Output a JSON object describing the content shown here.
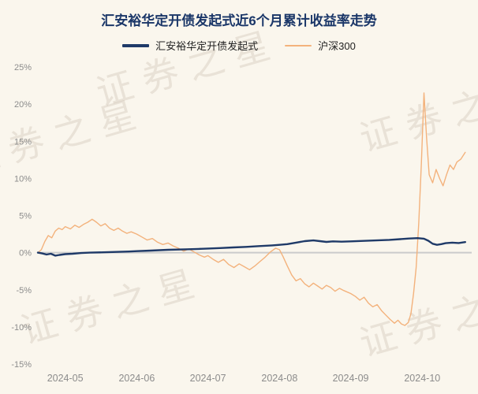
{
  "title": "汇安裕华定开债发起式近6个月累计收益率走势",
  "watermark_text": "证券之星",
  "colors": {
    "background": "#faf6ed",
    "title": "#1a3668",
    "fund_line": "#1f3a68",
    "csi300_line": "#f3b27c",
    "axis_text": "#8c8c8c",
    "zero_line": "#cbcbcb"
  },
  "chart_data": {
    "type": "line",
    "title": "汇安裕华定开债发起式近6个月累计收益率走势",
    "xlabel": "",
    "ylabel": "",
    "ylim": [
      -15,
      25
    ],
    "grid": false,
    "legend_position": "top",
    "yticks": [
      {
        "v": 25,
        "label": "25%"
      },
      {
        "v": 20,
        "label": "20%"
      },
      {
        "v": 15,
        "label": "15%"
      },
      {
        "v": 10,
        "label": "10%"
      },
      {
        "v": 5,
        "label": "5%"
      },
      {
        "v": 0,
        "label": "0%"
      },
      {
        "v": -5,
        "label": "-5%"
      },
      {
        "v": -10,
        "label": "-10%"
      },
      {
        "v": -15,
        "label": "-15%"
      }
    ],
    "xticks": [
      {
        "pos": 0.063,
        "label": "2024-05"
      },
      {
        "pos": 0.228,
        "label": "2024-06"
      },
      {
        "pos": 0.392,
        "label": "2024-07"
      },
      {
        "pos": 0.557,
        "label": "2024-08"
      },
      {
        "pos": 0.721,
        "label": "2024-09"
      },
      {
        "pos": 0.886,
        "label": "2024-10"
      }
    ],
    "series": [
      {
        "name": "汇安裕华定开债发起式",
        "color": "#1f3a68",
        "stroke_width": 2.4,
        "points": [
          [
            0.0,
            0.0
          ],
          [
            0.01,
            -0.1
          ],
          [
            0.02,
            -0.25
          ],
          [
            0.03,
            -0.15
          ],
          [
            0.04,
            -0.4
          ],
          [
            0.05,
            -0.3
          ],
          [
            0.063,
            -0.2
          ],
          [
            0.08,
            -0.15
          ],
          [
            0.1,
            -0.05
          ],
          [
            0.12,
            0.0
          ],
          [
            0.15,
            0.05
          ],
          [
            0.18,
            0.1
          ],
          [
            0.21,
            0.15
          ],
          [
            0.228,
            0.2
          ],
          [
            0.26,
            0.28
          ],
          [
            0.3,
            0.38
          ],
          [
            0.34,
            0.45
          ],
          [
            0.37,
            0.5
          ],
          [
            0.392,
            0.55
          ],
          [
            0.42,
            0.62
          ],
          [
            0.45,
            0.7
          ],
          [
            0.48,
            0.78
          ],
          [
            0.51,
            0.88
          ],
          [
            0.54,
            0.98
          ],
          [
            0.557,
            1.05
          ],
          [
            0.575,
            1.15
          ],
          [
            0.595,
            1.35
          ],
          [
            0.615,
            1.55
          ],
          [
            0.635,
            1.65
          ],
          [
            0.65,
            1.55
          ],
          [
            0.665,
            1.45
          ],
          [
            0.68,
            1.52
          ],
          [
            0.7,
            1.48
          ],
          [
            0.721,
            1.52
          ],
          [
            0.75,
            1.58
          ],
          [
            0.78,
            1.65
          ],
          [
            0.81,
            1.72
          ],
          [
            0.835,
            1.82
          ],
          [
            0.855,
            1.9
          ],
          [
            0.875,
            1.95
          ],
          [
            0.89,
            1.88
          ],
          [
            0.9,
            1.6
          ],
          [
            0.91,
            1.2
          ],
          [
            0.92,
            1.05
          ],
          [
            0.93,
            1.15
          ],
          [
            0.94,
            1.28
          ],
          [
            0.955,
            1.35
          ],
          [
            0.97,
            1.3
          ],
          [
            0.985,
            1.42
          ]
        ]
      },
      {
        "name": "沪深300",
        "color": "#f3b27c",
        "stroke_width": 1.4,
        "points": [
          [
            0.0,
            0.0
          ],
          [
            0.008,
            0.4
          ],
          [
            0.016,
            1.5
          ],
          [
            0.024,
            2.3
          ],
          [
            0.032,
            2.0
          ],
          [
            0.04,
            2.9
          ],
          [
            0.048,
            3.3
          ],
          [
            0.056,
            3.1
          ],
          [
            0.063,
            3.5
          ],
          [
            0.075,
            3.2
          ],
          [
            0.085,
            3.7
          ],
          [
            0.095,
            3.4
          ],
          [
            0.105,
            3.8
          ],
          [
            0.115,
            4.1
          ],
          [
            0.125,
            4.5
          ],
          [
            0.135,
            4.1
          ],
          [
            0.145,
            3.6
          ],
          [
            0.155,
            3.9
          ],
          [
            0.165,
            3.3
          ],
          [
            0.175,
            3.0
          ],
          [
            0.185,
            3.3
          ],
          [
            0.195,
            2.9
          ],
          [
            0.205,
            2.6
          ],
          [
            0.215,
            2.8
          ],
          [
            0.228,
            2.5
          ],
          [
            0.24,
            2.1
          ],
          [
            0.252,
            1.7
          ],
          [
            0.264,
            1.9
          ],
          [
            0.276,
            1.4
          ],
          [
            0.288,
            1.1
          ],
          [
            0.3,
            1.3
          ],
          [
            0.312,
            0.9
          ],
          [
            0.324,
            0.6
          ],
          [
            0.336,
            0.2
          ],
          [
            0.348,
            0.5
          ],
          [
            0.36,
            0.1
          ],
          [
            0.372,
            -0.3
          ],
          [
            0.384,
            -0.6
          ],
          [
            0.392,
            -0.4
          ],
          [
            0.404,
            -0.9
          ],
          [
            0.416,
            -1.3
          ],
          [
            0.428,
            -0.9
          ],
          [
            0.44,
            -1.6
          ],
          [
            0.452,
            -2.0
          ],
          [
            0.464,
            -1.5
          ],
          [
            0.476,
            -1.9
          ],
          [
            0.488,
            -2.3
          ],
          [
            0.5,
            -1.8
          ],
          [
            0.512,
            -1.2
          ],
          [
            0.524,
            -0.6
          ],
          [
            0.536,
            0.1
          ],
          [
            0.548,
            0.6
          ],
          [
            0.557,
            0.4
          ],
          [
            0.565,
            -0.5
          ],
          [
            0.575,
            -1.8
          ],
          [
            0.585,
            -3.0
          ],
          [
            0.595,
            -3.8
          ],
          [
            0.605,
            -3.5
          ],
          [
            0.615,
            -4.2
          ],
          [
            0.625,
            -4.6
          ],
          [
            0.635,
            -4.1
          ],
          [
            0.645,
            -4.5
          ],
          [
            0.655,
            -4.9
          ],
          [
            0.665,
            -4.4
          ],
          [
            0.675,
            -4.7
          ],
          [
            0.685,
            -5.2
          ],
          [
            0.695,
            -4.8
          ],
          [
            0.705,
            -5.1
          ],
          [
            0.721,
            -5.5
          ],
          [
            0.732,
            -5.9
          ],
          [
            0.742,
            -6.4
          ],
          [
            0.752,
            -6.0
          ],
          [
            0.762,
            -6.8
          ],
          [
            0.772,
            -7.3
          ],
          [
            0.782,
            -7.0
          ],
          [
            0.792,
            -7.8
          ],
          [
            0.802,
            -8.4
          ],
          [
            0.812,
            -9.0
          ],
          [
            0.822,
            -9.5
          ],
          [
            0.83,
            -9.1
          ],
          [
            0.838,
            -9.6
          ],
          [
            0.846,
            -9.8
          ],
          [
            0.854,
            -9.4
          ],
          [
            0.86,
            -8.2
          ],
          [
            0.866,
            -5.5
          ],
          [
            0.872,
            -2.0
          ],
          [
            0.878,
            4.0
          ],
          [
            0.884,
            12.0
          ],
          [
            0.89,
            21.5
          ],
          [
            0.896,
            15.5
          ],
          [
            0.902,
            10.5
          ],
          [
            0.91,
            9.4
          ],
          [
            0.918,
            11.2
          ],
          [
            0.926,
            10.0
          ],
          [
            0.934,
            9.0
          ],
          [
            0.942,
            10.5
          ],
          [
            0.95,
            11.8
          ],
          [
            0.958,
            11.2
          ],
          [
            0.966,
            12.2
          ],
          [
            0.975,
            12.6
          ],
          [
            0.985,
            13.5
          ]
        ]
      }
    ]
  }
}
